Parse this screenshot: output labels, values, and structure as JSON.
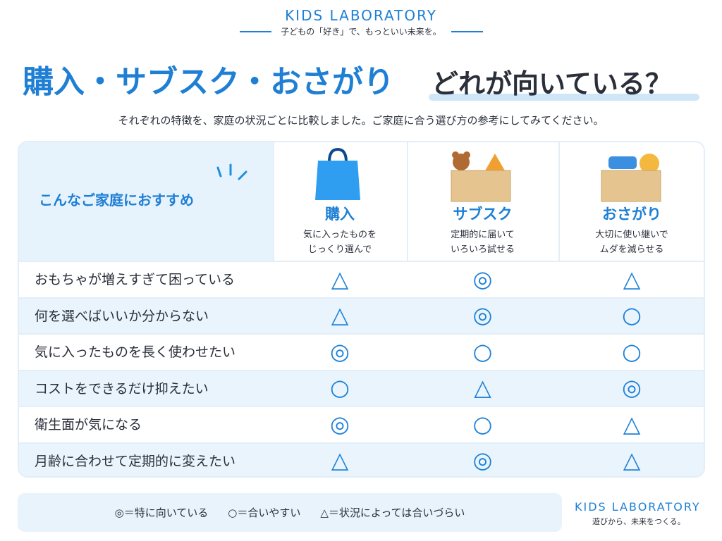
{
  "header": {
    "brand": "KIDS LABORATORY",
    "tagline": "子どもの「好き」で、もっといい未来を。"
  },
  "title": {
    "part1": "購入・サブスク・おさがり",
    "part2": "どれが向いている？"
  },
  "subtitle": "それぞれの特徴を、家庭の状況ごとに比較しました。ご家庭に合う選び方の参考にしてみてください。",
  "table": {
    "corner": "こんなご家庭におすすめ",
    "columns": [
      {
        "name": "購入",
        "desc": [
          "気に入ったものを",
          "じっくり選んで"
        ]
      },
      {
        "name": "サブスク",
        "desc": [
          "定期的に届いて",
          "いろいろ試せる"
        ]
      },
      {
        "name": "おさがり",
        "desc": [
          "大切に使い継いで",
          "ムダを減らせる"
        ]
      }
    ],
    "rows": [
      {
        "label": "おもちゃが増えすぎて困っている",
        "cells": [
          "△",
          "◎",
          "△"
        ]
      },
      {
        "label": "何を選べばいいか分からない",
        "cells": [
          "△",
          "◎",
          "○"
        ]
      },
      {
        "label": "気に入ったものを長く使わせたい",
        "cells": [
          "◎",
          "○",
          "○"
        ]
      },
      {
        "label": "コストをできるだけ抑えたい",
        "cells": [
          "○",
          "△",
          "◎"
        ]
      },
      {
        "label": "衛生面が気になる",
        "cells": [
          "◎",
          "○",
          "△"
        ]
      },
      {
        "label": "月齢に合わせて定期的に変えたい",
        "cells": [
          "△",
          "◎",
          "△"
        ]
      }
    ]
  },
  "legend": [
    "◎＝特に向いている",
    "○＝合いやすい",
    "△＝状況によっては合いづらい"
  ],
  "footer": {
    "brand": "KIDS LABORATORY",
    "tagline": "遊びから、未来をつくる。"
  }
}
